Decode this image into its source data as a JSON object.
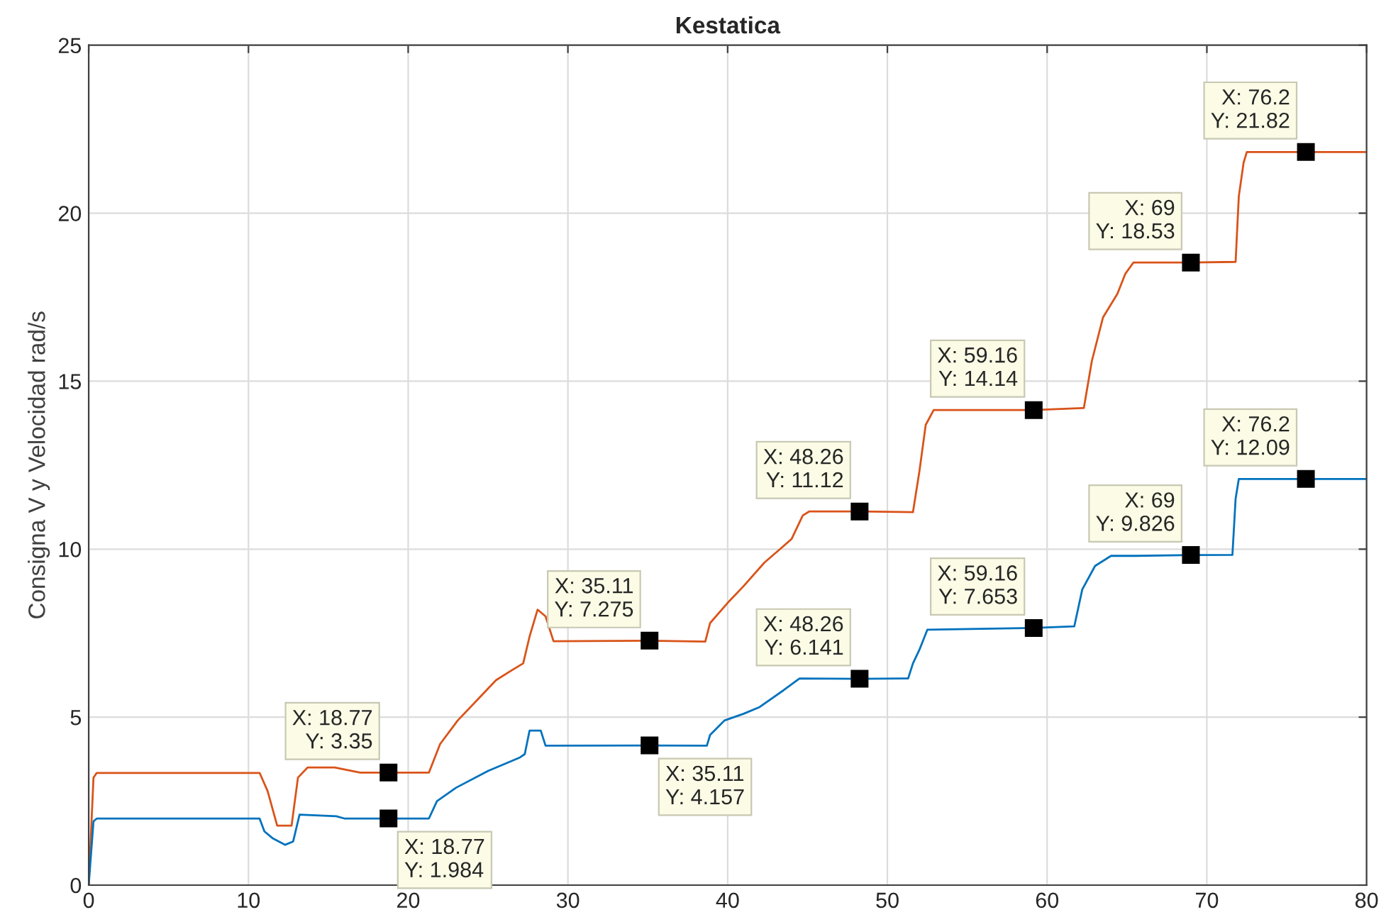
{
  "chart_data": {
    "type": "line",
    "title": "Kestatica",
    "ylabel": "Consigna V y Velocidad rad/s",
    "xlim": [
      0,
      80
    ],
    "ylim": [
      0,
      25
    ],
    "xticks": [
      0,
      10,
      20,
      30,
      40,
      50,
      60,
      70,
      80
    ],
    "yticks": [
      0,
      5,
      10,
      15,
      20,
      25
    ],
    "grid": true,
    "series": [
      {
        "color": "#d95319",
        "x": [
          0,
          0.3,
          0.5,
          10.7,
          11.2,
          11.8,
          12.7,
          13.1,
          13.7,
          15.4,
          17,
          21.3,
          22,
          23.1,
          24.5,
          25.5,
          26.5,
          27.2,
          27.6,
          28.1,
          28.6,
          29.1,
          35.11,
          38.6,
          38.9,
          40,
          41,
          42.3,
          43.2,
          44,
          44.7,
          45.1,
          48.26,
          51.6,
          52,
          52.4,
          52.9,
          59.16,
          62.3,
          62.8,
          63.5,
          64.4,
          64.9,
          65.4,
          69,
          71.8,
          72,
          72.3,
          72.5,
          76.2,
          80
        ],
        "values": [
          0,
          3.2,
          3.34,
          3.34,
          2.8,
          1.77,
          1.77,
          3.2,
          3.5,
          3.5,
          3.35,
          3.35,
          4.2,
          4.9,
          5.6,
          6.1,
          6.4,
          6.6,
          7.4,
          8.2,
          8.0,
          7.26,
          7.275,
          7.25,
          7.8,
          8.4,
          8.9,
          9.6,
          9.97,
          10.3,
          11.0,
          11.12,
          11.12,
          11.1,
          12.3,
          13.7,
          14.14,
          14.14,
          14.2,
          15.6,
          16.9,
          17.6,
          18.2,
          18.53,
          18.53,
          18.55,
          20.5,
          21.5,
          21.82,
          21.82,
          21.82
        ]
      },
      {
        "color": "#0072bd",
        "x": [
          0,
          0.3,
          0.5,
          10.7,
          11,
          11.5,
          12.3,
          12.8,
          13.2,
          15.5,
          16,
          21.3,
          21.8,
          23,
          25,
          27,
          27.3,
          27.6,
          28.3,
          28.6,
          35.11,
          38.7,
          38.9,
          39.8,
          41,
          42,
          43.5,
          44.5,
          48.26,
          51.3,
          51.6,
          52,
          52.5,
          59.16,
          61.7,
          62.2,
          63,
          64,
          65.5,
          69,
          71.6,
          71.8,
          72,
          76.2,
          80
        ],
        "values": [
          0,
          1.9,
          1.98,
          1.98,
          1.6,
          1.4,
          1.2,
          1.3,
          2.1,
          2.05,
          1.984,
          1.984,
          2.5,
          2.9,
          3.4,
          3.8,
          3.9,
          4.6,
          4.6,
          4.15,
          4.157,
          4.15,
          4.47,
          4.9,
          5.1,
          5.3,
          5.8,
          6.15,
          6.141,
          6.15,
          6.6,
          7.0,
          7.6,
          7.653,
          7.7,
          8.8,
          9.5,
          9.8,
          9.8,
          9.826,
          9.83,
          11.5,
          12.09,
          12.09,
          12.09
        ]
      }
    ],
    "annotations": [
      {
        "text": "X: 18.77\nY: 3.35",
        "x": 18.77,
        "y": 3.35
      },
      {
        "text": "X: 18.77\nY: 1.984",
        "x": 18.77,
        "y": 1.984
      },
      {
        "text": "X: 35.11\nY: 7.275",
        "x": 35.11,
        "y": 7.275
      },
      {
        "text": "X: 35.11\nY: 4.157",
        "x": 35.11,
        "y": 4.157
      },
      {
        "text": "X: 48.26\nY: 11.12",
        "x": 48.26,
        "y": 11.12
      },
      {
        "text": "X: 48.26\nY: 6.141",
        "x": 48.26,
        "y": 6.141
      },
      {
        "text": "X: 59.16\nY: 14.14",
        "x": 59.16,
        "y": 14.14
      },
      {
        "text": "X: 59.16\nY: 7.653",
        "x": 59.16,
        "y": 7.653
      },
      {
        "text": "X: 69\nY: 18.53",
        "x": 69,
        "y": 18.53
      },
      {
        "text": "X: 69\nY: 9.826",
        "x": 69,
        "y": 9.826
      },
      {
        "text": "X: 76.2\nY: 21.82",
        "x": 76.2,
        "y": 21.82
      },
      {
        "text": "X: 76.2\nY: 12.09",
        "x": 76.2,
        "y": 12.09
      }
    ]
  }
}
